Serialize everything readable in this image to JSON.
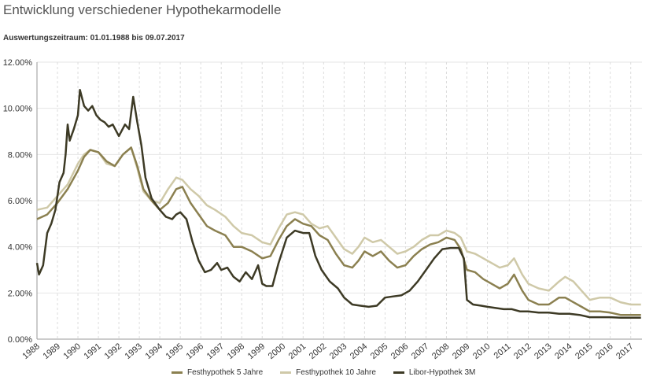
{
  "header": {
    "title": "Entwicklung verschiedener Hypothekarmodelle",
    "subtitle": "Auswertungszeitraum: 01.01.1988 bis 09.07.2017"
  },
  "chart_data": {
    "type": "line",
    "title": "Entwicklung verschiedener Hypothekarmodelle",
    "subtitle": "Auswertungszeitraum: 01.01.1988 bis 09.07.2017",
    "xlabel": "",
    "ylabel": "",
    "xlim": [
      1988.0,
      2017.55
    ],
    "ylim": [
      0,
      12
    ],
    "y_ticks": [
      "0.00%",
      "2.00%",
      "4.00%",
      "6.00%",
      "8.00%",
      "10.00%",
      "12.00%"
    ],
    "x_ticks": [
      "1988",
      "1989",
      "1990",
      "1991",
      "1992",
      "1993",
      "1994",
      "1995",
      "1996",
      "1997",
      "1998",
      "1999",
      "2000",
      "2001",
      "2002",
      "2003",
      "2004",
      "2005",
      "2006",
      "2007",
      "2008",
      "2009",
      "2010",
      "2011",
      "2012",
      "2013",
      "2014",
      "2015",
      "2016",
      "2017"
    ],
    "grid": "on",
    "legend_position": "bottom",
    "series": [
      {
        "name": "Festhypothek 5 Jahre",
        "color": "#8b8050",
        "points": [
          [
            1988.0,
            5.2
          ],
          [
            1988.5,
            5.4
          ],
          [
            1989.0,
            5.9
          ],
          [
            1989.5,
            6.5
          ],
          [
            1990.0,
            7.3
          ],
          [
            1990.3,
            7.9
          ],
          [
            1990.6,
            8.2
          ],
          [
            1991.0,
            8.1
          ],
          [
            1991.4,
            7.7
          ],
          [
            1991.8,
            7.5
          ],
          [
            1992.2,
            8.0
          ],
          [
            1992.6,
            8.3
          ],
          [
            1992.9,
            7.5
          ],
          [
            1993.2,
            6.5
          ],
          [
            1993.6,
            6.0
          ],
          [
            1994.0,
            5.6
          ],
          [
            1994.4,
            5.9
          ],
          [
            1994.8,
            6.5
          ],
          [
            1995.1,
            6.6
          ],
          [
            1995.5,
            5.9
          ],
          [
            1995.9,
            5.4
          ],
          [
            1996.3,
            4.9
          ],
          [
            1996.7,
            4.7
          ],
          [
            1997.2,
            4.5
          ],
          [
            1997.6,
            4.0
          ],
          [
            1998.0,
            4.0
          ],
          [
            1998.5,
            3.8
          ],
          [
            1999.0,
            3.5
          ],
          [
            1999.4,
            3.6
          ],
          [
            1999.8,
            4.3
          ],
          [
            2000.2,
            4.9
          ],
          [
            2000.6,
            5.2
          ],
          [
            2001.0,
            5.0
          ],
          [
            2001.4,
            4.9
          ],
          [
            2001.8,
            4.5
          ],
          [
            2002.2,
            4.3
          ],
          [
            2002.6,
            3.7
          ],
          [
            2003.0,
            3.2
          ],
          [
            2003.4,
            3.1
          ],
          [
            2003.7,
            3.4
          ],
          [
            2004.0,
            3.8
          ],
          [
            2004.4,
            3.6
          ],
          [
            2004.8,
            3.8
          ],
          [
            2005.2,
            3.4
          ],
          [
            2005.6,
            3.1
          ],
          [
            2006.0,
            3.2
          ],
          [
            2006.4,
            3.6
          ],
          [
            2006.8,
            3.9
          ],
          [
            2007.2,
            4.1
          ],
          [
            2007.6,
            4.2
          ],
          [
            2008.0,
            4.4
          ],
          [
            2008.4,
            4.3
          ],
          [
            2008.7,
            3.9
          ],
          [
            2009.0,
            3.0
          ],
          [
            2009.4,
            2.9
          ],
          [
            2009.8,
            2.6
          ],
          [
            2010.2,
            2.4
          ],
          [
            2010.6,
            2.2
          ],
          [
            2011.0,
            2.4
          ],
          [
            2011.3,
            2.8
          ],
          [
            2011.7,
            2.1
          ],
          [
            2012.0,
            1.7
          ],
          [
            2012.5,
            1.5
          ],
          [
            2013.0,
            1.5
          ],
          [
            2013.5,
            1.8
          ],
          [
            2013.8,
            1.8
          ],
          [
            2014.2,
            1.6
          ],
          [
            2014.6,
            1.4
          ],
          [
            2015.0,
            1.2
          ],
          [
            2015.5,
            1.2
          ],
          [
            2016.0,
            1.15
          ],
          [
            2016.5,
            1.05
          ],
          [
            2017.0,
            1.05
          ],
          [
            2017.5,
            1.05
          ]
        ]
      },
      {
        "name": "Festhypothek 10 Jahre",
        "color": "#cfc9a8",
        "points": [
          [
            1988.0,
            5.6
          ],
          [
            1988.5,
            5.7
          ],
          [
            1989.0,
            6.2
          ],
          [
            1989.5,
            6.7
          ],
          [
            1990.0,
            7.6
          ],
          [
            1990.3,
            8.0
          ],
          [
            1990.6,
            8.2
          ],
          [
            1991.0,
            8.1
          ],
          [
            1991.4,
            7.6
          ],
          [
            1991.8,
            7.5
          ],
          [
            1992.2,
            8.0
          ],
          [
            1992.6,
            8.3
          ],
          [
            1992.9,
            7.4
          ],
          [
            1993.2,
            6.4
          ],
          [
            1993.6,
            6.0
          ],
          [
            1994.0,
            5.9
          ],
          [
            1994.4,
            6.5
          ],
          [
            1994.8,
            7.0
          ],
          [
            1995.1,
            6.9
          ],
          [
            1995.5,
            6.5
          ],
          [
            1995.9,
            6.2
          ],
          [
            1996.3,
            5.8
          ],
          [
            1996.7,
            5.6
          ],
          [
            1997.2,
            5.3
          ],
          [
            1997.6,
            4.9
          ],
          [
            1998.0,
            4.6
          ],
          [
            1998.5,
            4.5
          ],
          [
            1999.0,
            4.2
          ],
          [
            1999.4,
            4.1
          ],
          [
            1999.8,
            4.8
          ],
          [
            2000.2,
            5.4
          ],
          [
            2000.6,
            5.5
          ],
          [
            2001.0,
            5.4
          ],
          [
            2001.4,
            5.0
          ],
          [
            2001.8,
            4.8
          ],
          [
            2002.2,
            4.9
          ],
          [
            2002.6,
            4.4
          ],
          [
            2003.0,
            3.9
          ],
          [
            2003.4,
            3.7
          ],
          [
            2003.7,
            4.0
          ],
          [
            2004.0,
            4.4
          ],
          [
            2004.4,
            4.2
          ],
          [
            2004.8,
            4.3
          ],
          [
            2005.2,
            4.0
          ],
          [
            2005.6,
            3.7
          ],
          [
            2006.0,
            3.8
          ],
          [
            2006.4,
            4.0
          ],
          [
            2006.8,
            4.3
          ],
          [
            2007.2,
            4.5
          ],
          [
            2007.6,
            4.5
          ],
          [
            2008.0,
            4.7
          ],
          [
            2008.4,
            4.6
          ],
          [
            2008.7,
            4.4
          ],
          [
            2009.0,
            3.8
          ],
          [
            2009.4,
            3.7
          ],
          [
            2009.8,
            3.5
          ],
          [
            2010.2,
            3.3
          ],
          [
            2010.6,
            3.1
          ],
          [
            2011.0,
            3.2
          ],
          [
            2011.3,
            3.5
          ],
          [
            2011.7,
            2.8
          ],
          [
            2012.0,
            2.4
          ],
          [
            2012.5,
            2.2
          ],
          [
            2013.0,
            2.1
          ],
          [
            2013.5,
            2.5
          ],
          [
            2013.8,
            2.7
          ],
          [
            2014.2,
            2.5
          ],
          [
            2014.6,
            2.1
          ],
          [
            2015.0,
            1.7
          ],
          [
            2015.5,
            1.8
          ],
          [
            2016.0,
            1.8
          ],
          [
            2016.5,
            1.6
          ],
          [
            2017.0,
            1.5
          ],
          [
            2017.5,
            1.5
          ]
        ]
      },
      {
        "name": "Libor-Hypothek 3M",
        "color": "#3d3a25",
        "points": [
          [
            1988.0,
            3.3
          ],
          [
            1988.1,
            2.8
          ],
          [
            1988.3,
            3.2
          ],
          [
            1988.5,
            4.6
          ],
          [
            1988.7,
            5.0
          ],
          [
            1988.9,
            5.6
          ],
          [
            1989.1,
            6.8
          ],
          [
            1989.3,
            7.2
          ],
          [
            1989.4,
            8.0
          ],
          [
            1989.5,
            9.3
          ],
          [
            1989.6,
            8.6
          ],
          [
            1989.8,
            9.1
          ],
          [
            1990.0,
            9.7
          ],
          [
            1990.1,
            10.8
          ],
          [
            1990.3,
            10.1
          ],
          [
            1990.5,
            9.9
          ],
          [
            1990.7,
            10.1
          ],
          [
            1990.9,
            9.7
          ],
          [
            1991.1,
            9.5
          ],
          [
            1991.3,
            9.4
          ],
          [
            1991.5,
            9.2
          ],
          [
            1991.7,
            9.3
          ],
          [
            1992.0,
            8.8
          ],
          [
            1992.3,
            9.3
          ],
          [
            1992.5,
            9.1
          ],
          [
            1992.7,
            10.5
          ],
          [
            1992.9,
            9.4
          ],
          [
            1993.1,
            8.4
          ],
          [
            1993.3,
            7.0
          ],
          [
            1993.6,
            6.1
          ],
          [
            1994.0,
            5.6
          ],
          [
            1994.3,
            5.3
          ],
          [
            1994.6,
            5.2
          ],
          [
            1994.8,
            5.4
          ],
          [
            1995.0,
            5.5
          ],
          [
            1995.3,
            5.2
          ],
          [
            1995.6,
            4.2
          ],
          [
            1995.9,
            3.4
          ],
          [
            1996.2,
            2.9
          ],
          [
            1996.5,
            3.0
          ],
          [
            1996.8,
            3.3
          ],
          [
            1997.0,
            3.0
          ],
          [
            1997.3,
            3.1
          ],
          [
            1997.6,
            2.7
          ],
          [
            1997.9,
            2.5
          ],
          [
            1998.2,
            2.9
          ],
          [
            1998.5,
            2.6
          ],
          [
            1998.8,
            3.2
          ],
          [
            1999.0,
            2.4
          ],
          [
            1999.2,
            2.3
          ],
          [
            1999.5,
            2.3
          ],
          [
            1999.8,
            3.3
          ],
          [
            2000.2,
            4.4
          ],
          [
            2000.6,
            4.7
          ],
          [
            2001.0,
            4.6
          ],
          [
            2001.3,
            4.6
          ],
          [
            2001.6,
            3.6
          ],
          [
            2001.9,
            3.0
          ],
          [
            2002.3,
            2.5
          ],
          [
            2002.7,
            2.2
          ],
          [
            2003.0,
            1.8
          ],
          [
            2003.4,
            1.5
          ],
          [
            2003.8,
            1.45
          ],
          [
            2004.2,
            1.4
          ],
          [
            2004.6,
            1.45
          ],
          [
            2005.0,
            1.8
          ],
          [
            2005.4,
            1.85
          ],
          [
            2005.8,
            1.9
          ],
          [
            2006.2,
            2.1
          ],
          [
            2006.6,
            2.5
          ],
          [
            2007.0,
            3.0
          ],
          [
            2007.4,
            3.5
          ],
          [
            2007.8,
            3.9
          ],
          [
            2008.2,
            3.95
          ],
          [
            2008.6,
            3.95
          ],
          [
            2008.85,
            3.5
          ],
          [
            2009.0,
            1.7
          ],
          [
            2009.3,
            1.5
          ],
          [
            2009.7,
            1.45
          ],
          [
            2010.0,
            1.4
          ],
          [
            2010.4,
            1.35
          ],
          [
            2010.8,
            1.3
          ],
          [
            2011.2,
            1.3
          ],
          [
            2011.6,
            1.2
          ],
          [
            2012.0,
            1.2
          ],
          [
            2012.5,
            1.15
          ],
          [
            2013.0,
            1.15
          ],
          [
            2013.5,
            1.1
          ],
          [
            2014.0,
            1.1
          ],
          [
            2014.5,
            1.05
          ],
          [
            2015.0,
            0.95
          ],
          [
            2015.5,
            0.95
          ],
          [
            2016.0,
            0.95
          ],
          [
            2016.5,
            0.93
          ],
          [
            2017.0,
            0.93
          ],
          [
            2017.5,
            0.93
          ]
        ]
      }
    ]
  }
}
